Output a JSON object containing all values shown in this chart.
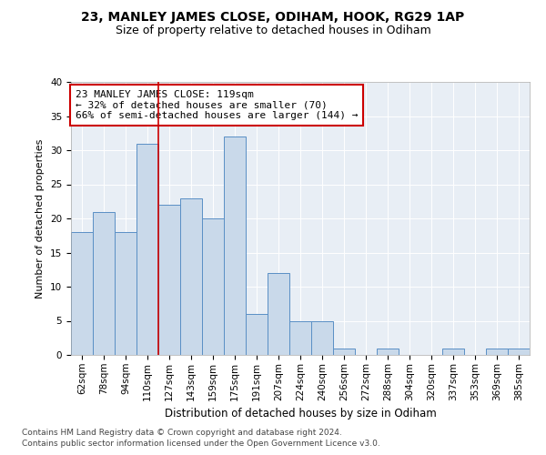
{
  "title": "23, MANLEY JAMES CLOSE, ODIHAM, HOOK, RG29 1AP",
  "subtitle": "Size of property relative to detached houses in Odiham",
  "xlabel": "Distribution of detached houses by size in Odiham",
  "ylabel": "Number of detached properties",
  "categories": [
    "62sqm",
    "78sqm",
    "94sqm",
    "110sqm",
    "127sqm",
    "143sqm",
    "159sqm",
    "175sqm",
    "191sqm",
    "207sqm",
    "224sqm",
    "240sqm",
    "256sqm",
    "272sqm",
    "288sqm",
    "304sqm",
    "320sqm",
    "337sqm",
    "353sqm",
    "369sqm",
    "385sqm"
  ],
  "values": [
    18,
    21,
    18,
    31,
    22,
    23,
    20,
    32,
    6,
    12,
    5,
    5,
    1,
    0,
    1,
    0,
    0,
    1,
    0,
    1,
    1
  ],
  "bar_color": "#c9d9ea",
  "bar_edge_color": "#5a8fc5",
  "vline_x": 3.5,
  "vline_color": "#cc0000",
  "annotation_text": "23 MANLEY JAMES CLOSE: 119sqm\n← 32% of detached houses are smaller (70)\n66% of semi-detached houses are larger (144) →",
  "annotation_box_color": "#ffffff",
  "annotation_box_edge_color": "#cc0000",
  "ylim": [
    0,
    40
  ],
  "yticks": [
    0,
    5,
    10,
    15,
    20,
    25,
    30,
    35,
    40
  ],
  "background_color": "#e8eef5",
  "footer_line1": "Contains HM Land Registry data © Crown copyright and database right 2024.",
  "footer_line2": "Contains public sector information licensed under the Open Government Licence v3.0.",
  "title_fontsize": 10,
  "subtitle_fontsize": 9,
  "xlabel_fontsize": 8.5,
  "ylabel_fontsize": 8,
  "tick_fontsize": 7.5,
  "annotation_fontsize": 8,
  "footer_fontsize": 6.5
}
